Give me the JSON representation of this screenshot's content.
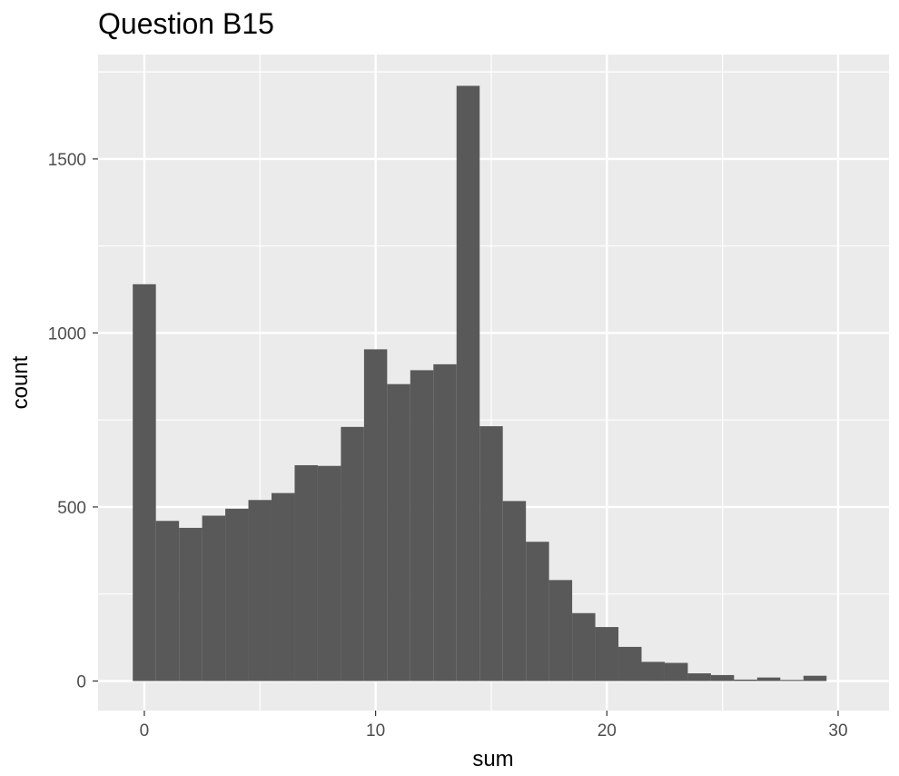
{
  "chart_data": {
    "type": "bar",
    "title": "Question B15",
    "xlabel": "sum",
    "ylabel": "count",
    "bin_width": 1,
    "x": [
      0,
      1,
      2,
      3,
      4,
      5,
      6,
      7,
      8,
      9,
      10,
      11,
      12,
      13,
      14,
      15,
      16,
      17,
      18,
      19,
      20,
      21,
      22,
      23,
      24,
      25,
      26,
      27,
      28,
      29,
      30
    ],
    "values": [
      1140,
      460,
      440,
      475,
      495,
      520,
      540,
      620,
      618,
      730,
      953,
      853,
      893,
      910,
      1710,
      732,
      517,
      400,
      290,
      195,
      155,
      98,
      55,
      52,
      22,
      17,
      4,
      10,
      3,
      15,
      0
    ],
    "xlim": [
      -2,
      32.2
    ],
    "ylim": [
      -85,
      1800
    ],
    "xticks": [
      0,
      10,
      20,
      30
    ],
    "xtick_labels": [
      "0",
      "10",
      "20",
      "30"
    ],
    "yticks": [
      0,
      500,
      1000,
      1500
    ],
    "ytick_labels": [
      "0",
      "500",
      "1000",
      "1500"
    ],
    "grid": true,
    "colors": {
      "bar": "#595959",
      "panel": "#ebebeb",
      "grid_major": "#ffffff",
      "tick": "#333333"
    }
  }
}
